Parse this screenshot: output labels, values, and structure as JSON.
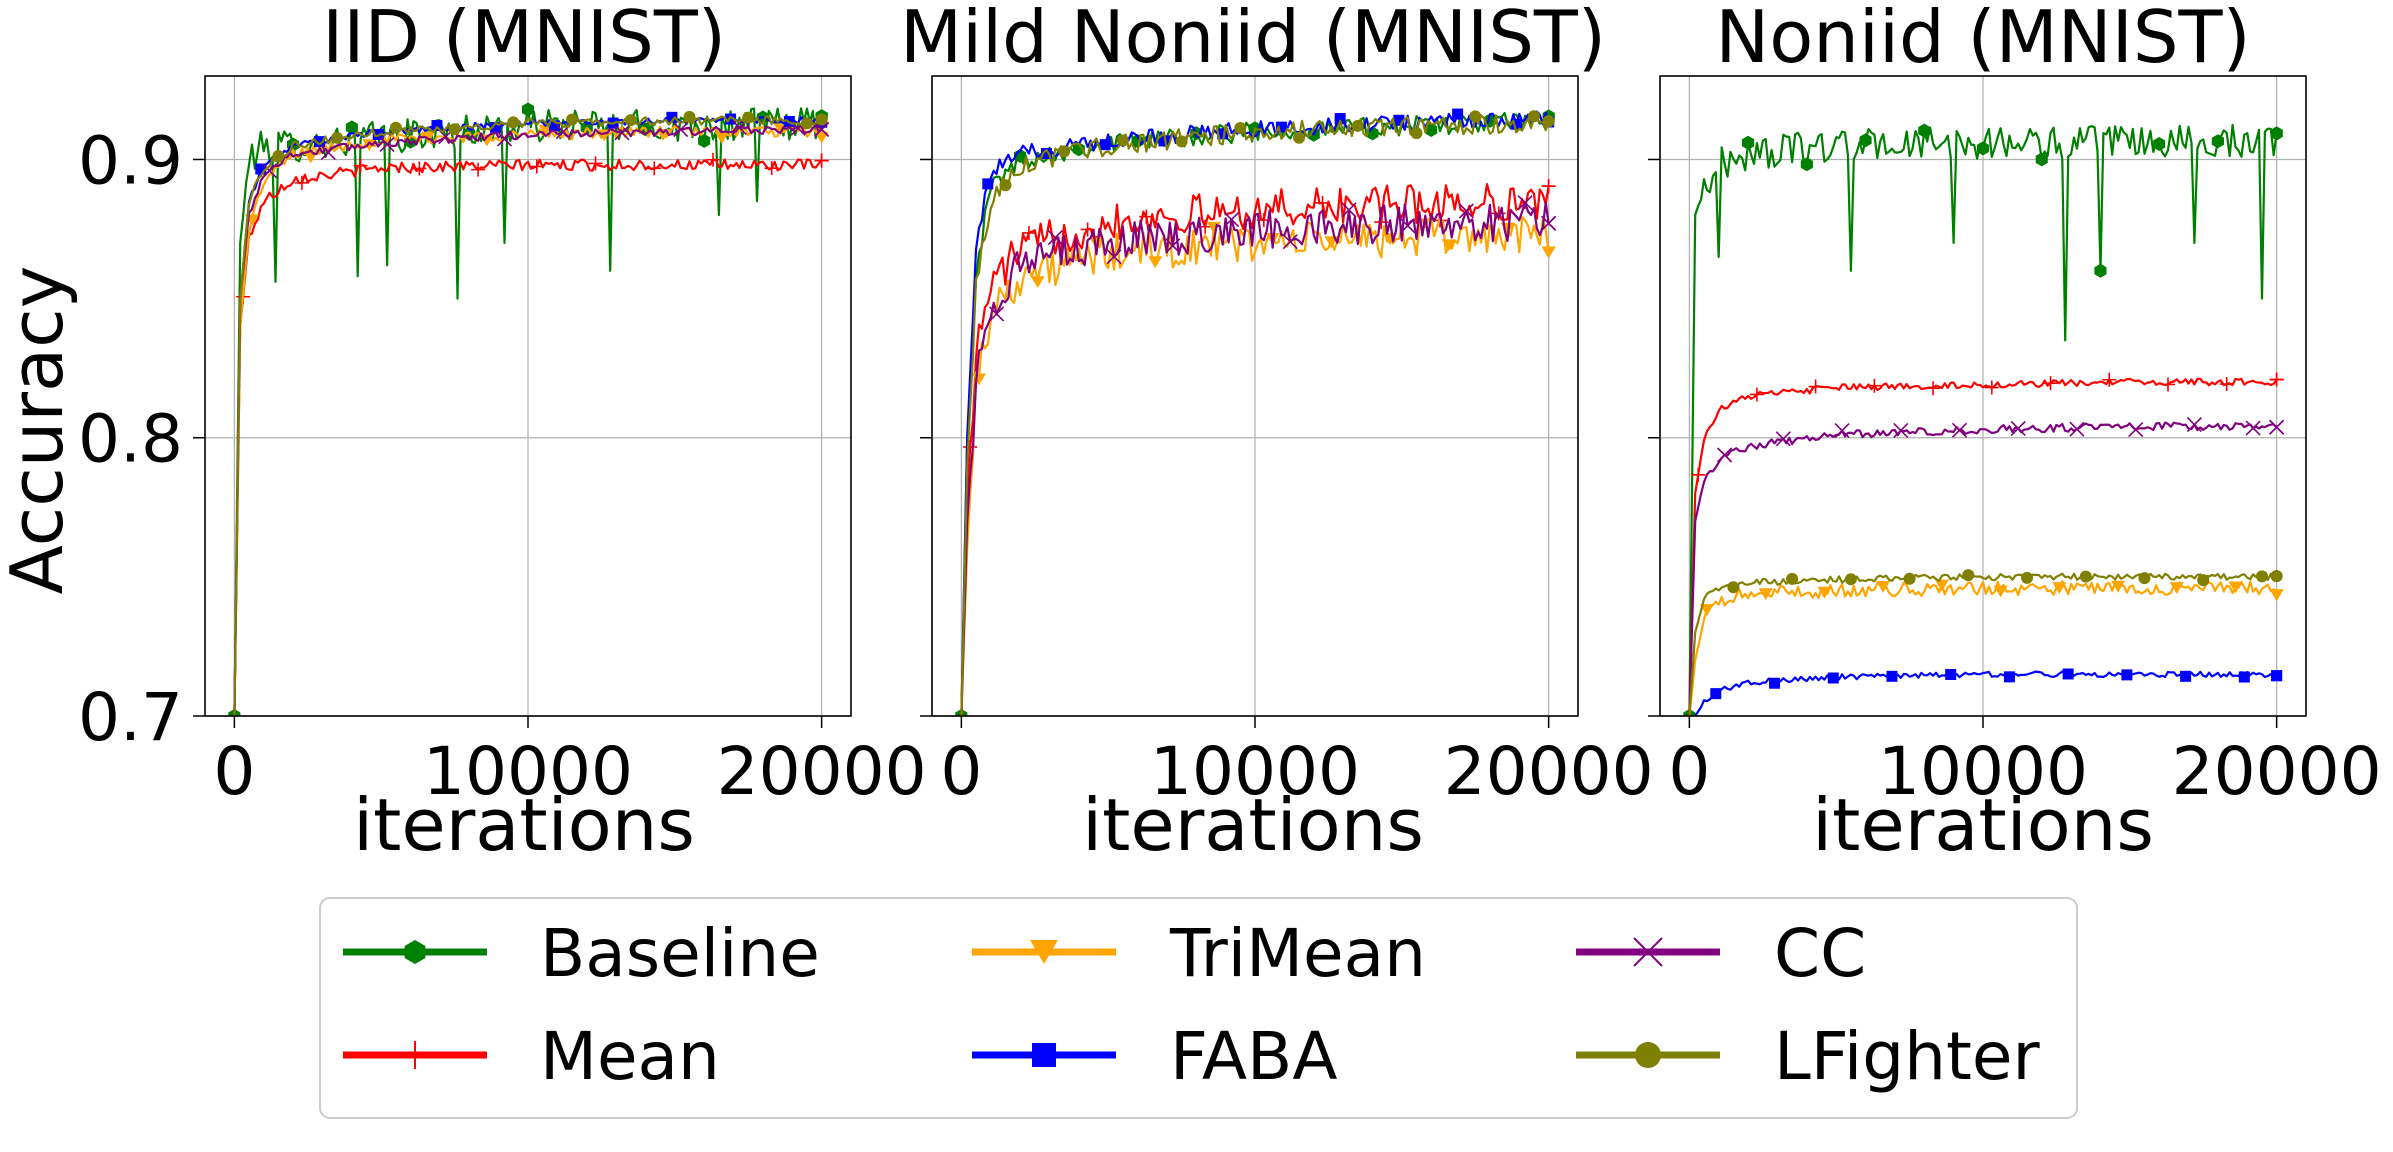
{
  "figure": {
    "ylabel": "Accuracy",
    "xlabel": "iterations"
  },
  "legend": {
    "placement": "bottom-center",
    "entries": [
      {
        "label": "Baseline",
        "color": "#008000",
        "marker": "hexagon"
      },
      {
        "label": "Mean",
        "color": "#ff0000",
        "marker": "plus"
      },
      {
        "label": "TriMean",
        "color": "#ffa500",
        "marker": "triangle-down"
      },
      {
        "label": "FABA",
        "color": "#0000ff",
        "marker": "square"
      },
      {
        "label": "CC",
        "color": "#800080",
        "marker": "x"
      },
      {
        "label": "LFighter",
        "color": "#808000",
        "marker": "circle"
      }
    ]
  },
  "chart_data": [
    {
      "type": "line",
      "title": "IID (MNIST)",
      "xlabel": "iterations",
      "ylabel": "Accuracy",
      "xlim": [
        -1000,
        21000
      ],
      "ylim": [
        0.7,
        0.93
      ],
      "xticks": [
        "0",
        "10000",
        "20000"
      ],
      "yticks": [
        "0.7",
        "0.8",
        "0.9"
      ],
      "grid": true,
      "series": [
        {
          "name": "Baseline",
          "color": "#008000",
          "x": [
            0,
            200,
            500,
            1000,
            2000,
            5000,
            10000,
            15000,
            20000
          ],
          "values": [
            0.7,
            0.87,
            0.9,
            0.905,
            0.905,
            0.908,
            0.912,
            0.912,
            0.913
          ],
          "noise": 0.006,
          "dips": [
            [
              1400,
              0.856
            ],
            [
              4200,
              0.858
            ],
            [
              5200,
              0.862
            ],
            [
              7600,
              0.85
            ],
            [
              9200,
              0.87
            ],
            [
              12800,
              0.86
            ],
            [
              16500,
              0.88
            ],
            [
              17800,
              0.885
            ]
          ]
        },
        {
          "name": "Mean",
          "color": "#ff0000",
          "x": [
            0,
            200,
            500,
            1000,
            2000,
            5000,
            10000,
            15000,
            20000
          ],
          "values": [
            0.7,
            0.84,
            0.872,
            0.885,
            0.893,
            0.897,
            0.898,
            0.898,
            0.898
          ],
          "noise": 0.002
        },
        {
          "name": "TriMean",
          "color": "#ffa500",
          "x": [
            0,
            200,
            500,
            1000,
            2000,
            5000,
            10000,
            15000,
            20000
          ],
          "values": [
            0.7,
            0.84,
            0.875,
            0.892,
            0.902,
            0.907,
            0.909,
            0.91,
            0.91
          ],
          "noise": 0.002
        },
        {
          "name": "FABA",
          "color": "#0000ff",
          "x": [
            0,
            200,
            500,
            1000,
            2000,
            5000,
            10000,
            15000,
            20000
          ],
          "values": [
            0.7,
            0.85,
            0.885,
            0.898,
            0.905,
            0.91,
            0.913,
            0.914,
            0.914
          ],
          "noise": 0.0012
        },
        {
          "name": "CC",
          "color": "#800080",
          "x": [
            0,
            200,
            500,
            1000,
            2000,
            5000,
            10000,
            15000,
            20000
          ],
          "values": [
            0.7,
            0.85,
            0.88,
            0.895,
            0.902,
            0.906,
            0.909,
            0.91,
            0.911
          ],
          "noise": 0.0015
        },
        {
          "name": "LFighter",
          "color": "#808000",
          "x": [
            0,
            200,
            500,
            1000,
            2000,
            5000,
            10000,
            15000,
            20000
          ],
          "values": [
            0.7,
            0.85,
            0.885,
            0.897,
            0.905,
            0.91,
            0.913,
            0.914,
            0.914
          ],
          "noise": 0.0015
        }
      ]
    },
    {
      "type": "line",
      "title": "Mild Noniid (MNIST)",
      "xlabel": "iterations",
      "ylabel": "",
      "xlim": [
        -1000,
        21000
      ],
      "ylim": [
        0.7,
        0.93
      ],
      "xticks": [
        "0",
        "10000",
        "20000"
      ],
      "yticks": [
        "0.7",
        "0.8",
        "0.9"
      ],
      "grid": true,
      "series": [
        {
          "name": "Baseline",
          "color": "#008000",
          "x": [
            0,
            200,
            500,
            1000,
            2000,
            5000,
            10000,
            15000,
            20000
          ],
          "values": [
            0.7,
            0.8,
            0.86,
            0.89,
            0.9,
            0.906,
            0.91,
            0.912,
            0.914
          ],
          "noise": 0.0035
        },
        {
          "name": "Mean",
          "color": "#ff0000",
          "x": [
            0,
            200,
            500,
            1000,
            2000,
            5000,
            10000,
            15000,
            20000
          ],
          "values": [
            0.7,
            0.78,
            0.83,
            0.855,
            0.868,
            0.878,
            0.882,
            0.884,
            0.885
          ],
          "noise": 0.007
        },
        {
          "name": "TriMean",
          "color": "#ffa500",
          "x": [
            0,
            200,
            500,
            1000,
            2000,
            5000,
            10000,
            15000,
            20000
          ],
          "values": [
            0.7,
            0.76,
            0.82,
            0.845,
            0.858,
            0.866,
            0.87,
            0.872,
            0.873
          ],
          "noise": 0.007
        },
        {
          "name": "FABA",
          "color": "#0000ff",
          "x": [
            0,
            200,
            500,
            1000,
            2000,
            5000,
            10000,
            15000,
            20000
          ],
          "values": [
            0.7,
            0.8,
            0.87,
            0.895,
            0.902,
            0.907,
            0.911,
            0.913,
            0.915
          ],
          "noise": 0.003
        },
        {
          "name": "CC",
          "color": "#800080",
          "x": [
            0,
            200,
            500,
            1000,
            2000,
            5000,
            10000,
            15000,
            20000
          ],
          "values": [
            0.7,
            0.77,
            0.82,
            0.848,
            0.862,
            0.87,
            0.875,
            0.877,
            0.878
          ],
          "noise": 0.007
        },
        {
          "name": "LFighter",
          "color": "#808000",
          "x": [
            0,
            200,
            500,
            1000,
            2000,
            5000,
            10000,
            15000,
            20000
          ],
          "values": [
            0.7,
            0.79,
            0.855,
            0.885,
            0.898,
            0.905,
            0.91,
            0.912,
            0.913
          ],
          "noise": 0.0035
        }
      ]
    },
    {
      "type": "line",
      "title": "Noniid (MNIST)",
      "xlabel": "iterations",
      "ylabel": "",
      "xlim": [
        -1000,
        21000
      ],
      "ylim": [
        0.7,
        0.93
      ],
      "xticks": [
        "0",
        "10000",
        "20000"
      ],
      "yticks": [
        "0.7",
        "0.8",
        "0.9"
      ],
      "grid": true,
      "series": [
        {
          "name": "Baseline",
          "color": "#008000",
          "x": [
            0,
            200,
            500,
            1000,
            2000,
            5000,
            10000,
            15000,
            20000
          ],
          "values": [
            0.7,
            0.88,
            0.89,
            0.898,
            0.902,
            0.905,
            0.906,
            0.906,
            0.907
          ],
          "noise": 0.006,
          "dips": [
            [
              1000,
              0.865
            ],
            [
              5500,
              0.86
            ],
            [
              9000,
              0.87
            ],
            [
              12800,
              0.835
            ],
            [
              14000,
              0.86
            ],
            [
              19500,
              0.85
            ],
            [
              17200,
              0.87
            ]
          ]
        },
        {
          "name": "Mean",
          "color": "#ff0000",
          "x": [
            0,
            200,
            500,
            1000,
            2000,
            5000,
            10000,
            15000,
            20000
          ],
          "values": [
            0.7,
            0.78,
            0.8,
            0.81,
            0.815,
            0.818,
            0.819,
            0.82,
            0.82
          ],
          "noise": 0.0012
        },
        {
          "name": "TriMean",
          "color": "#ffa500",
          "x": [
            0,
            200,
            500,
            1000,
            2000,
            5000,
            10000,
            15000,
            20000
          ],
          "values": [
            0.7,
            0.72,
            0.735,
            0.741,
            0.744,
            0.745,
            0.746,
            0.746,
            0.746
          ],
          "noise": 0.0025
        },
        {
          "name": "FABA",
          "color": "#0000ff",
          "x": [
            0,
            200,
            500,
            1000,
            2000,
            5000,
            10000,
            15000,
            20000
          ],
          "values": [
            0.69,
            0.7,
            0.705,
            0.709,
            0.712,
            0.714,
            0.715,
            0.715,
            0.715
          ],
          "noise": 0.001
        },
        {
          "name": "CC",
          "color": "#800080",
          "x": [
            0,
            200,
            500,
            1000,
            2000,
            5000,
            10000,
            15000,
            20000
          ],
          "values": [
            0.7,
            0.77,
            0.785,
            0.792,
            0.797,
            0.801,
            0.803,
            0.804,
            0.804
          ],
          "noise": 0.0015
        },
        {
          "name": "LFighter",
          "color": "#808000",
          "x": [
            0,
            200,
            500,
            1000,
            2000,
            5000,
            10000,
            15000,
            20000
          ],
          "values": [
            0.7,
            0.73,
            0.742,
            0.746,
            0.748,
            0.749,
            0.75,
            0.75,
            0.75
          ],
          "noise": 0.0012
        }
      ]
    }
  ]
}
